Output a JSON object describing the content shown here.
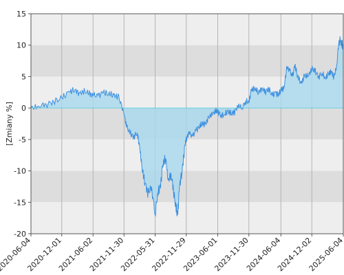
{
  "chart_data": {
    "type": "area",
    "title": "",
    "ylabel": "[Zmiany %]",
    "xlabel": "",
    "ylim": [
      -20,
      15
    ],
    "yticks": [
      15,
      10,
      5,
      0,
      -5,
      -10,
      -15,
      -20
    ],
    "xlim": [
      "2020-06-04",
      "2025-06-04"
    ],
    "xticks": [
      "2020-06-04",
      "2020-12-01",
      "2021-06-02",
      "2021-11-30",
      "2022-05-31",
      "2022-11-29",
      "2023-06-01",
      "2023-11-30",
      "2024-06-04",
      "2024-12-02",
      "2025-06-04"
    ],
    "grid": true,
    "legend": "none",
    "colors": {
      "line": "#3a8fe0",
      "fill": "#a7d8ee",
      "band_light": "#eeeeee",
      "band_dark": "#dddddd",
      "vgrid": "#b4b4b4",
      "zero": "#66ccdd"
    },
    "series": [
      {
        "x": [
          "2020-06-04",
          "2020-07-15",
          "2020-09-01",
          "2020-10-15",
          "2020-12-01",
          "2021-01-15",
          "2021-02-15",
          "2021-03-15",
          "2021-04-15",
          "2021-05-15",
          "2021-06-02",
          "2021-07-01",
          "2021-08-01",
          "2021-09-01",
          "2021-10-01",
          "2021-11-01",
          "2021-11-30",
          "2021-12-15",
          "2022-01-05",
          "2022-01-25",
          "2022-02-15",
          "2022-03-01",
          "2022-03-15",
          "2022-04-01",
          "2022-04-20",
          "2022-05-10",
          "2022-05-31",
          "2022-06-15",
          "2022-06-30",
          "2022-07-15",
          "2022-08-01",
          "2022-08-15",
          "2022-09-01",
          "2022-09-15",
          "2022-09-30",
          "2022-10-10",
          "2022-10-20",
          "2022-11-05",
          "2022-11-20",
          "2022-11-29",
          "2022-12-15",
          "2023-01-05",
          "2023-01-25",
          "2023-02-15",
          "2023-03-01",
          "2023-03-20",
          "2023-04-10",
          "2023-05-01",
          "2023-05-20",
          "2023-06-01",
          "2023-06-20",
          "2023-07-10",
          "2023-08-01",
          "2023-08-20",
          "2023-09-10",
          "2023-10-01",
          "2023-10-20",
          "2023-11-10",
          "2023-11-30",
          "2023-12-15",
          "2024-01-05",
          "2024-01-25",
          "2024-02-15",
          "2024-03-05",
          "2024-03-25",
          "2024-04-15",
          "2024-05-05",
          "2024-05-20",
          "2024-06-04",
          "2024-06-20",
          "2024-07-10",
          "2024-07-25",
          "2024-08-10",
          "2024-08-25",
          "2024-09-10",
          "2024-10-01",
          "2024-10-20",
          "2024-11-10",
          "2024-12-02",
          "2024-12-20",
          "2025-01-10",
          "2025-01-30",
          "2025-02-20",
          "2025-03-10",
          "2025-03-25",
          "2025-04-10",
          "2025-04-25",
          "2025-05-10",
          "2025-05-25",
          "2025-06-04"
        ],
        "values": [
          0,
          0.3,
          0.6,
          1.0,
          1.6,
          2.6,
          2.8,
          2.4,
          2.7,
          2.2,
          2.0,
          2.0,
          2.5,
          2.2,
          2.1,
          1.7,
          -1.0,
          -3.0,
          -4.0,
          -4.6,
          -4.0,
          -6.0,
          -9.5,
          -12.0,
          -13.5,
          -12.5,
          -17.0,
          -13.5,
          -12.5,
          -9.0,
          -8.0,
          -11.5,
          -10.5,
          -13.0,
          -16.0,
          -17.0,
          -12.5,
          -10.0,
          -6.0,
          -5.0,
          -4.0,
          -4.5,
          -3.5,
          -3.0,
          -2.5,
          -2.5,
          -1.5,
          -1.0,
          -0.5,
          -0.5,
          -1.2,
          -1.0,
          -0.5,
          -1.0,
          -0.5,
          0.5,
          0,
          1.0,
          1.0,
          3.0,
          3.0,
          2.5,
          3.2,
          2.6,
          3.0,
          2.0,
          2.5,
          2.0,
          3.0,
          3.0,
          6.5,
          6.0,
          5.0,
          6.8,
          5.0,
          4.0,
          5.2,
          5.0,
          6.2,
          6.0,
          5.0,
          5.5,
          4.8,
          5.5,
          5.8,
          5.0,
          6.5,
          10.8,
          10.5,
          9.5
        ]
      }
    ]
  }
}
